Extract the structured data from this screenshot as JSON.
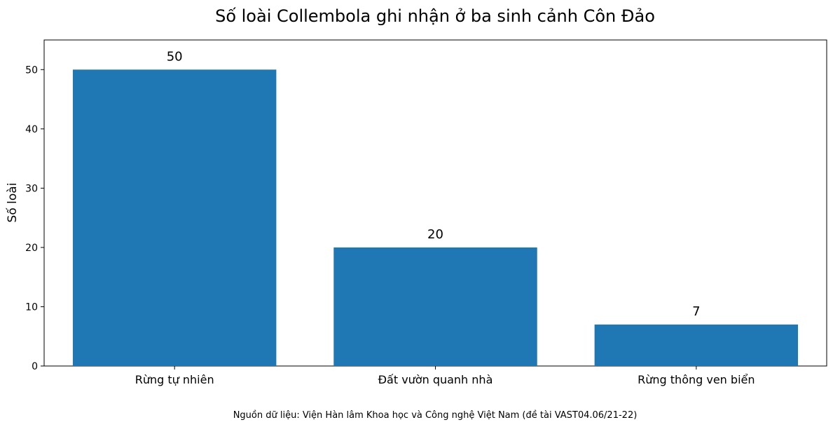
{
  "chart_data": {
    "type": "bar",
    "title": "Số loài Collembola ghi nhận ở ba sinh cảnh Côn Đảo",
    "xlabel": "",
    "ylabel": "Số loài",
    "categories": [
      "Rừng tự nhiên",
      "Đất vườn quanh nhà",
      "Rừng thông ven biển"
    ],
    "values": [
      50,
      20,
      7
    ],
    "value_labels": [
      "50",
      "20",
      "7"
    ],
    "ylim": [
      0,
      55
    ],
    "yticks": [
      0,
      10,
      20,
      30,
      40,
      50
    ],
    "bar_color": "#1f77b4",
    "grid": false,
    "legend": "none"
  },
  "footer": {
    "source": "Nguồn dữ liệu: Viện Hàn lâm Khoa học và Công nghệ Việt Nam (đề tài VAST04.06/21-22)"
  }
}
